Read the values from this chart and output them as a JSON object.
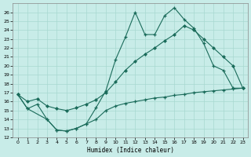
{
  "xlabel": "Humidex (Indice chaleur)",
  "xlim": [
    -0.5,
    23.5
  ],
  "ylim": [
    12,
    27
  ],
  "yticks": [
    12,
    13,
    14,
    15,
    16,
    17,
    18,
    19,
    20,
    21,
    22,
    23,
    24,
    25,
    26
  ],
  "xticks": [
    0,
    1,
    2,
    3,
    4,
    5,
    6,
    7,
    8,
    9,
    10,
    11,
    12,
    13,
    14,
    15,
    16,
    17,
    18,
    19,
    20,
    21,
    22,
    23
  ],
  "bg_color": "#c8ece8",
  "line_color": "#1a6b5a",
  "grid_color": "#a8d8d0",
  "line1_x": [
    0,
    1,
    2,
    3,
    4,
    5,
    6,
    7,
    8,
    9,
    10,
    11,
    12,
    13,
    14,
    15,
    16,
    17,
    18,
    19,
    20,
    21,
    22,
    23
  ],
  "line1_y": [
    16.8,
    15.2,
    15.7,
    14.0,
    12.8,
    12.7,
    13.0,
    13.5,
    15.3,
    17.2,
    20.7,
    23.2,
    26.0,
    23.5,
    23.5,
    25.6,
    26.5,
    25.2,
    24.2,
    22.5,
    20.0,
    19.5,
    17.5,
    17.5
  ],
  "line2_x": [
    0,
    1,
    2,
    3,
    4,
    5,
    6,
    7,
    8,
    9,
    10,
    11,
    12,
    13,
    14,
    15,
    16,
    17,
    18,
    19,
    20,
    21,
    22,
    23
  ],
  "line2_y": [
    16.8,
    16.0,
    16.3,
    15.5,
    15.2,
    15.0,
    15.3,
    15.7,
    16.2,
    17.0,
    18.2,
    19.5,
    20.5,
    21.3,
    22.0,
    22.8,
    23.5,
    24.5,
    24.0,
    23.0,
    22.0,
    21.0,
    20.0,
    17.5
  ],
  "line3_x": [
    0,
    1,
    3,
    4,
    5,
    6,
    7,
    8,
    9,
    10,
    11,
    12,
    13,
    14,
    15,
    16,
    17,
    18,
    19,
    20,
    21,
    22,
    23
  ],
  "line3_y": [
    16.8,
    15.2,
    14.0,
    12.8,
    12.7,
    13.0,
    13.5,
    14.0,
    15.0,
    15.5,
    15.8,
    16.0,
    16.2,
    16.4,
    16.5,
    16.7,
    16.8,
    17.0,
    17.1,
    17.2,
    17.3,
    17.4,
    17.5
  ]
}
